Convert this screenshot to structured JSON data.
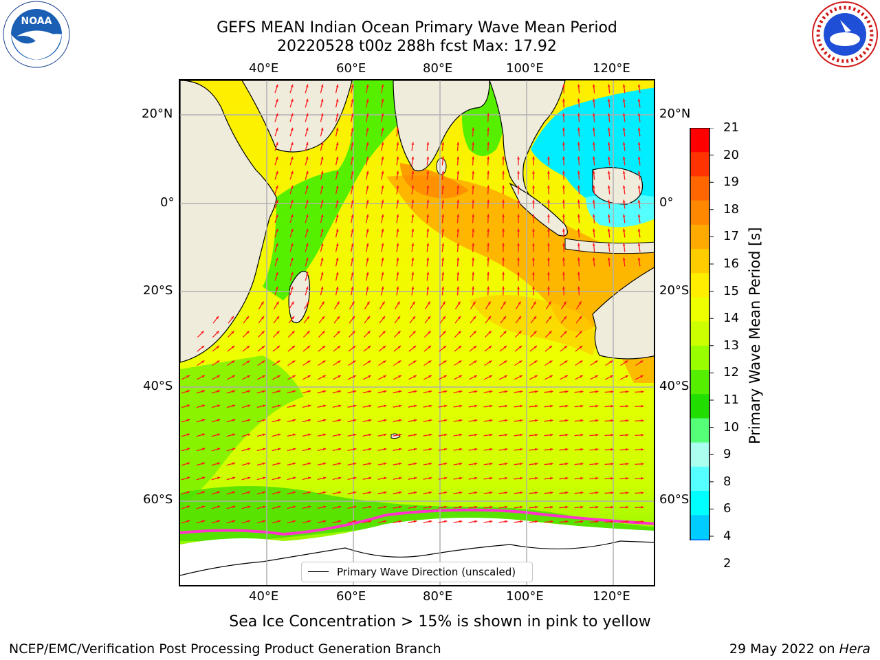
{
  "header": {
    "title_line1": "GEFS MEAN Indian Ocean Primary Wave Mean Period",
    "title_line2": "20220528 t00z 288h fcst   Max: 17.92"
  },
  "map": {
    "lon_labels": [
      "40°E",
      "60°E",
      "80°E",
      "100°E",
      "120°E"
    ],
    "lat_labels": [
      "20°N",
      "0°",
      "20°S",
      "40°S",
      "60°S"
    ],
    "lon_range": [
      20,
      130
    ],
    "lat_range": [
      -72,
      28
    ],
    "legend_label": "Primary Wave Direction (unscaled)",
    "arrow_color": "#ff1a1a",
    "land_color": "#efecdc",
    "ice_color": "#ffffff"
  },
  "colorbar": {
    "label": "Primary Wave Mean Period [s]",
    "ticks": [
      "21",
      "20",
      "19",
      "18",
      "17",
      "16",
      "15",
      "14",
      "13",
      "12",
      "11",
      "10",
      "9",
      "8",
      "6",
      "4",
      "2"
    ],
    "colors": [
      "#ff0000",
      "#ff3300",
      "#ff6600",
      "#ff8800",
      "#ffaa00",
      "#ffcc00",
      "#ffee00",
      "#eeff00",
      "#ccff00",
      "#99ff00",
      "#55ee00",
      "#22dd00",
      "#55ff77",
      "#aaffee",
      "#55ffff",
      "#00ffff",
      "#00ccff",
      "#0066ff"
    ],
    "under_color": "#0000ff"
  },
  "caption": "Sea Ice Concentration > 15% is shown in pink to yellow",
  "footer": {
    "left": "NCEP/EMC/Verification Post Processing Product Generation Branch",
    "right_date": "29 May 2022 on ",
    "right_host": "Hera"
  },
  "logos": {
    "noaa_text": "NOAA",
    "noaa_color": "#1a5fb4",
    "nws_color": "#1f4fd6"
  }
}
